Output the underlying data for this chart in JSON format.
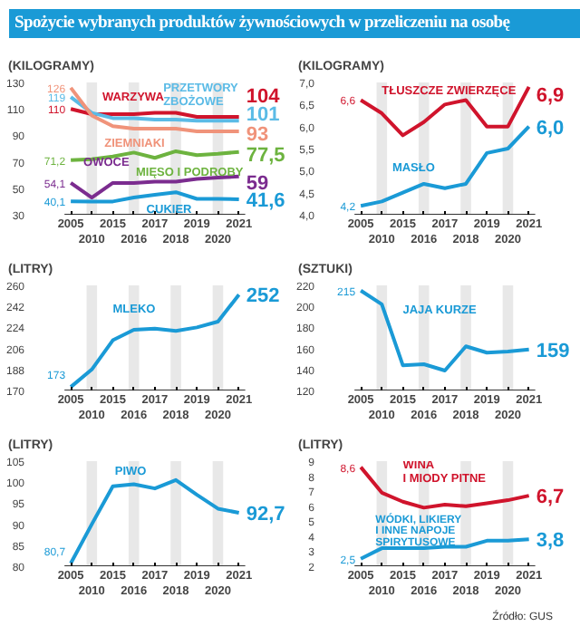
{
  "chart_data": [
    {
      "type": "line",
      "title": "Spożycie wybranych produktów żywnościowych w przeliczeniu na osobę",
      "ylabel": "(KILOGRAMY)",
      "categories": [
        "2005",
        "2010",
        "2015",
        "2016",
        "2017",
        "2018",
        "2019",
        "2020",
        "2021"
      ],
      "ylim": [
        30,
        130
      ],
      "yticks": [
        30,
        50,
        70,
        90,
        110,
        130
      ],
      "grid": false,
      "bands": [
        {
          "axis": "x",
          "from": "2010",
          "to": "2010",
          "color": "#e8e8e8"
        },
        {
          "axis": "x",
          "from": "2016",
          "to": "2016",
          "color": "#e8e8e8"
        },
        {
          "axis": "x",
          "from": "2018",
          "to": "2018",
          "color": "#e8e8e8"
        },
        {
          "axis": "x",
          "from": "2020",
          "to": "2020",
          "color": "#e8e8e8"
        }
      ],
      "series": [
        {
          "name": "WARZYWA",
          "color": "#d0142c",
          "values": [
            110,
            106,
            106,
            106,
            107,
            107,
            104,
            104,
            104
          ],
          "value_labels": [
            "110",
            null,
            null,
            null,
            null,
            null,
            null,
            null,
            "104"
          ]
        },
        {
          "name": "PRZETWORY\nZBOŻOWE",
          "color": "#5bbbe6",
          "values": [
            119,
            107,
            103,
            103,
            102,
            102,
            101,
            101,
            101
          ],
          "value_labels": [
            "119",
            null,
            null,
            null,
            null,
            null,
            null,
            null,
            "101"
          ]
        },
        {
          "name": "ZIEMNIAKI",
          "color": "#f0937a",
          "values": [
            126,
            105,
            97,
            95,
            95,
            95,
            93,
            93,
            93
          ],
          "value_labels": [
            "126",
            null,
            null,
            null,
            null,
            null,
            null,
            null,
            "93"
          ]
        },
        {
          "name": "MIĘSO I PODROBY",
          "color": "#6db33f",
          "values": [
            71.2,
            72,
            74,
            77,
            73,
            78,
            75,
            76,
            77.5
          ],
          "value_labels": [
            "71,2",
            null,
            null,
            null,
            null,
            null,
            null,
            null,
            "77,5"
          ]
        },
        {
          "name": "OWOCE",
          "color": "#7b2c8f",
          "values": [
            54.1,
            43,
            54,
            54,
            55,
            55,
            57,
            58,
            59
          ],
          "value_labels": [
            "54,1",
            null,
            null,
            null,
            null,
            null,
            null,
            null,
            "59"
          ]
        },
        {
          "name": "CUKIER",
          "color": "#1a9ad6",
          "values": [
            40.1,
            40,
            40,
            43,
            45,
            47,
            42,
            42,
            41.6
          ],
          "value_labels": [
            "40,1",
            null,
            null,
            null,
            null,
            null,
            null,
            null,
            "41,6"
          ]
        }
      ]
    },
    {
      "type": "line",
      "ylabel": "(KILOGRAMY)",
      "categories": [
        "2005",
        "2010",
        "2015",
        "2016",
        "2017",
        "2018",
        "2019",
        "2020",
        "2021"
      ],
      "ylim": [
        4.0,
        7.0
      ],
      "yticks": [
        {
          "value": 4.0,
          "label": "4,0"
        },
        {
          "value": 4.5,
          "label": "4,5"
        },
        {
          "value": 5.0,
          "label": "5,0"
        },
        {
          "value": 5.5,
          "label": "5,5"
        },
        {
          "value": 6.0,
          "label": "6,0"
        },
        {
          "value": 6.5,
          "label": "6,5"
        },
        {
          "value": 7.0,
          "label": "7,0"
        }
      ],
      "grid": false,
      "bands": [
        {
          "axis": "x",
          "from": "2010",
          "to": "2010",
          "color": "#e8e8e8"
        },
        {
          "axis": "x",
          "from": "2016",
          "to": "2016",
          "color": "#e8e8e8"
        },
        {
          "axis": "x",
          "from": "2018",
          "to": "2018",
          "color": "#e8e8e8"
        },
        {
          "axis": "x",
          "from": "2020",
          "to": "2020",
          "color": "#e8e8e8"
        }
      ],
      "series": [
        {
          "name": "TŁUSZCZE ZWIERZĘCE",
          "color": "#d0142c",
          "values": [
            6.6,
            6.3,
            5.8,
            6.1,
            6.5,
            6.6,
            6.0,
            6.0,
            6.9
          ],
          "value_labels": [
            "6,6",
            null,
            null,
            null,
            null,
            null,
            null,
            null,
            "6,9"
          ]
        },
        {
          "name": "MASŁO",
          "color": "#1a9ad6",
          "values": [
            4.2,
            4.3,
            4.5,
            4.7,
            4.6,
            4.7,
            5.4,
            5.5,
            6.0
          ],
          "value_labels": [
            "4,2",
            null,
            null,
            null,
            null,
            null,
            null,
            null,
            "6,0"
          ]
        }
      ]
    },
    {
      "type": "line",
      "ylabel": "(LITRY)",
      "categories": [
        "2005",
        "2010",
        "2015",
        "2016",
        "2017",
        "2018",
        "2019",
        "2020",
        "2021"
      ],
      "ylim": [
        170,
        260
      ],
      "yticks": [
        170,
        188,
        206,
        224,
        242,
        260
      ],
      "grid": false,
      "bands": [
        {
          "axis": "x",
          "from": "2010",
          "to": "2010",
          "color": "#e8e8e8"
        },
        {
          "axis": "x",
          "from": "2016",
          "to": "2016",
          "color": "#e8e8e8"
        },
        {
          "axis": "x",
          "from": "2018",
          "to": "2018",
          "color": "#e8e8e8"
        },
        {
          "axis": "x",
          "from": "2020",
          "to": "2020",
          "color": "#e8e8e8"
        }
      ],
      "series": [
        {
          "name": "MLEKO",
          "color": "#1a9ad6",
          "values": [
            173,
            188,
            213,
            222,
            223,
            221,
            224,
            229,
            252
          ],
          "value_labels": [
            "173",
            null,
            null,
            null,
            null,
            null,
            null,
            null,
            "252"
          ]
        }
      ]
    },
    {
      "type": "line",
      "ylabel": "(SZTUKI)",
      "categories": [
        "2005",
        "2010",
        "2015",
        "2016",
        "2017",
        "2018",
        "2019",
        "2020",
        "2021"
      ],
      "ylim": [
        120,
        220
      ],
      "yticks": [
        120,
        140,
        160,
        180,
        200,
        220
      ],
      "grid": false,
      "bands": [
        {
          "axis": "x",
          "from": "2010",
          "to": "2010",
          "color": "#e8e8e8"
        },
        {
          "axis": "x",
          "from": "2016",
          "to": "2016",
          "color": "#e8e8e8"
        },
        {
          "axis": "x",
          "from": "2018",
          "to": "2018",
          "color": "#e8e8e8"
        },
        {
          "axis": "x",
          "from": "2020",
          "to": "2020",
          "color": "#e8e8e8"
        }
      ],
      "series": [
        {
          "name": "JAJA KURZE",
          "color": "#1a9ad6",
          "values": [
            215,
            202,
            144,
            145,
            139,
            162,
            156,
            157,
            159
          ],
          "value_labels": [
            "215",
            null,
            null,
            null,
            null,
            null,
            null,
            null,
            "159"
          ]
        }
      ]
    },
    {
      "type": "line",
      "ylabel": "(LITRY)",
      "categories": [
        "2005",
        "2010",
        "2015",
        "2016",
        "2017",
        "2018",
        "2019",
        "2020",
        "2021"
      ],
      "ylim": [
        80,
        105
      ],
      "yticks": [
        80,
        85,
        90,
        95,
        100,
        105
      ],
      "grid": false,
      "bands": [
        {
          "axis": "x",
          "from": "2010",
          "to": "2010",
          "color": "#e8e8e8"
        },
        {
          "axis": "x",
          "from": "2016",
          "to": "2016",
          "color": "#e8e8e8"
        },
        {
          "axis": "x",
          "from": "2018",
          "to": "2018",
          "color": "#e8e8e8"
        },
        {
          "axis": "x",
          "from": "2020",
          "to": "2020",
          "color": "#e8e8e8"
        }
      ],
      "series": [
        {
          "name": "PIWO",
          "color": "#1a9ad6",
          "values": [
            80.7,
            90,
            99,
            99.5,
            98.5,
            100.5,
            97,
            93.7,
            92.7
          ],
          "value_labels": [
            "80,7",
            null,
            null,
            null,
            null,
            null,
            null,
            null,
            "92,7"
          ]
        }
      ]
    },
    {
      "type": "line",
      "ylabel": "(LITRY)",
      "categories": [
        "2005",
        "2010",
        "2015",
        "2016",
        "2017",
        "2018",
        "2019",
        "2020",
        "2021"
      ],
      "ylim": [
        2,
        9
      ],
      "yticks": [
        2,
        3,
        4,
        5,
        6,
        7,
        8,
        9
      ],
      "grid": false,
      "bands": [
        {
          "axis": "x",
          "from": "2010",
          "to": "2010",
          "color": "#e8e8e8"
        },
        {
          "axis": "x",
          "from": "2016",
          "to": "2016",
          "color": "#e8e8e8"
        },
        {
          "axis": "x",
          "from": "2018",
          "to": "2018",
          "color": "#e8e8e8"
        },
        {
          "axis": "x",
          "from": "2020",
          "to": "2020",
          "color": "#e8e8e8"
        }
      ],
      "annotations": [
        "Źródło: GUS"
      ],
      "series": [
        {
          "name": "WINA\nI MIODY PITNE",
          "color": "#d0142c",
          "values": [
            8.6,
            6.9,
            6.3,
            5.9,
            6.1,
            6.0,
            6.2,
            6.4,
            6.7
          ],
          "value_labels": [
            "8,6",
            null,
            null,
            null,
            null,
            null,
            null,
            null,
            "6,7"
          ]
        },
        {
          "name": "WÓDKI, LIKIERY\nI INNE NAPOJE\nSPIRYTUSOWE",
          "color": "#1a9ad6",
          "values": [
            2.5,
            3.2,
            3.2,
            3.2,
            3.3,
            3.3,
            3.7,
            3.7,
            3.8
          ],
          "value_labels": [
            "2,5",
            null,
            null,
            null,
            null,
            null,
            null,
            null,
            "3,8"
          ]
        }
      ]
    }
  ]
}
